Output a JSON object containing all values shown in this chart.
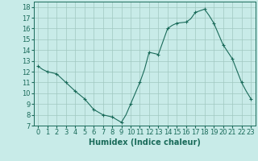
{
  "x_markers": [
    0,
    1,
    2,
    3,
    4,
    5,
    6,
    7,
    8,
    9,
    10,
    11,
    12,
    13,
    14,
    15,
    16,
    17,
    18,
    19,
    20,
    21,
    22,
    23
  ],
  "y_markers": [
    12.5,
    12.0,
    11.8,
    11.0,
    10.2,
    9.5,
    8.5,
    8.0,
    7.8,
    7.3,
    9.0,
    11.0,
    13.8,
    13.6,
    16.0,
    16.5,
    16.6,
    17.5,
    17.8,
    16.5,
    14.5,
    13.2,
    11.0,
    9.5
  ],
  "x_line": [
    0,
    0.5,
    1,
    1.5,
    2,
    2.5,
    3,
    3.5,
    4,
    4.5,
    5,
    5.5,
    6,
    6.5,
    7,
    7.5,
    8,
    8.5,
    9,
    9.5,
    10,
    10.5,
    11,
    11.5,
    12,
    12.5,
    13,
    13.5,
    14,
    14.5,
    15,
    15.5,
    16,
    16.5,
    17,
    17.5,
    18,
    18.5,
    19,
    19.5,
    20,
    20.5,
    21,
    21.5,
    22,
    22.5,
    23
  ],
  "y_line": [
    12.5,
    12.2,
    12.0,
    11.9,
    11.8,
    11.4,
    11.0,
    10.6,
    10.2,
    9.85,
    9.5,
    9.0,
    8.5,
    8.25,
    8.0,
    7.9,
    7.8,
    7.55,
    7.3,
    8.0,
    9.0,
    10.0,
    11.0,
    12.2,
    13.8,
    13.7,
    13.6,
    14.8,
    16.0,
    16.3,
    16.5,
    16.55,
    16.6,
    16.9,
    17.5,
    17.65,
    17.8,
    17.2,
    16.5,
    15.5,
    14.5,
    13.85,
    13.2,
    12.1,
    11.0,
    10.2,
    9.5
  ],
  "xlim": [
    -0.5,
    23.5
  ],
  "ylim": [
    7,
    18.5
  ],
  "yticks": [
    7,
    8,
    9,
    10,
    11,
    12,
    13,
    14,
    15,
    16,
    17,
    18
  ],
  "xticks": [
    0,
    1,
    2,
    3,
    4,
    5,
    6,
    7,
    8,
    9,
    10,
    11,
    12,
    13,
    14,
    15,
    16,
    17,
    18,
    19,
    20,
    21,
    22,
    23
  ],
  "xlabel": "Humidex (Indice chaleur)",
  "line_color": "#1a6b5a",
  "bg_color": "#c8ebe8",
  "grid_color": "#a0c8c0",
  "xlabel_fontsize": 7,
  "tick_fontsize": 6
}
